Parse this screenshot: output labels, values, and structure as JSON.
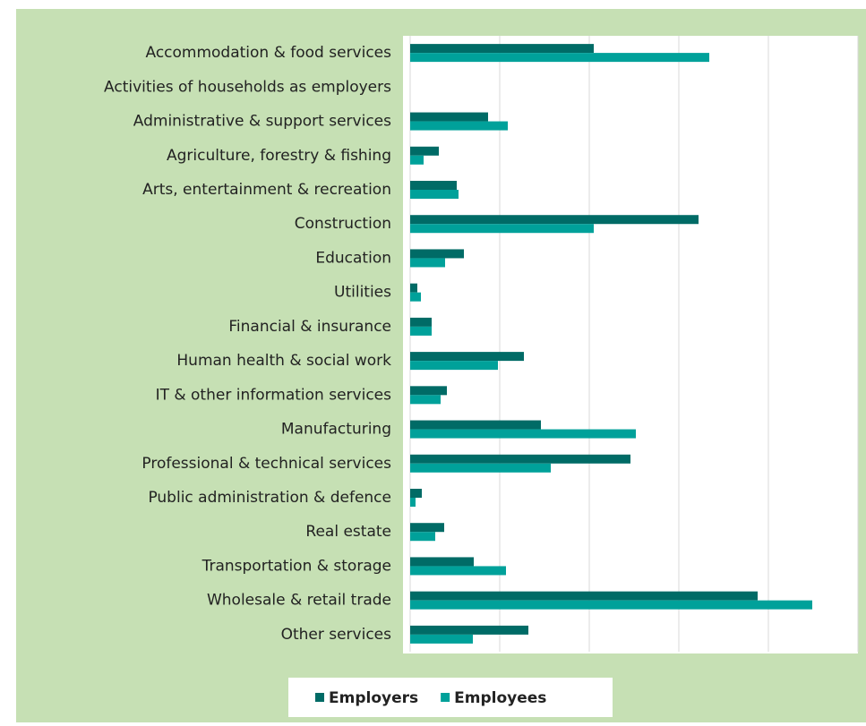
{
  "chart_data": {
    "type": "bar",
    "orientation": "horizontal",
    "categories": [
      "Accommodation & food services",
      "Activities of households as employers",
      "Administrative & support services",
      "Agriculture, forestry & fishing",
      "Arts, entertainment & recreation",
      "Construction",
      "Education",
      "Utilities",
      "Financial & insurance",
      "Human health & social work",
      "IT & other information services",
      "Manufacturing",
      "Professional & technical services",
      "Public administration & defence",
      "Real estate",
      "Transportation & storage",
      "Wholesale & retail trade",
      "Other services"
    ],
    "series": [
      {
        "name": "Employers",
        "color": "#006b66",
        "values": [
          2.05,
          0,
          0.87,
          0.32,
          0.52,
          3.22,
          0.6,
          0.08,
          0.24,
          1.27,
          0.41,
          1.46,
          2.46,
          0.13,
          0.38,
          0.71,
          3.88,
          1.32
        ]
      },
      {
        "name": "Employees",
        "color": "#00a19a",
        "values": [
          3.34,
          0,
          1.09,
          0.15,
          0.54,
          2.05,
          0.39,
          0.12,
          0.24,
          0.98,
          0.34,
          2.52,
          1.57,
          0.06,
          0.28,
          1.07,
          4.49,
          0.7
        ]
      }
    ],
    "xlim": [
      0,
      5
    ],
    "xticks": [
      0,
      1,
      2,
      3,
      4,
      5
    ],
    "grid": true,
    "legend": "bottom"
  }
}
